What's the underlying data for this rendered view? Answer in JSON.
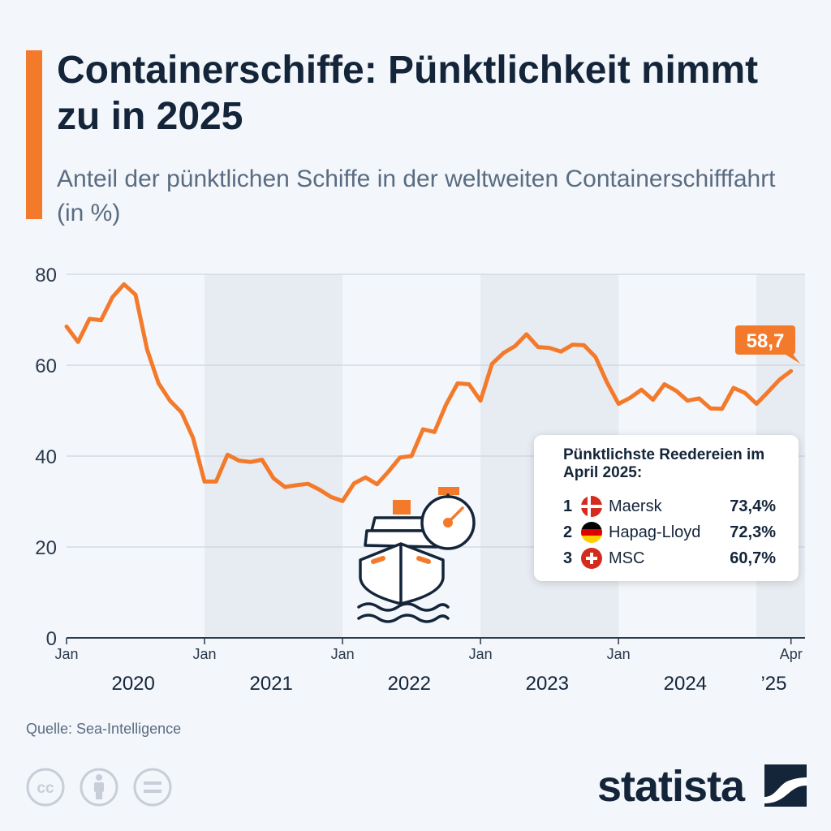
{
  "header": {
    "title": "Containerschiffe: Pünktlichkeit nimmt zu in 2025",
    "subtitle": "Anteil der pünktlichen Schiffe in der weltweiten Containerschifffahrt (in %)"
  },
  "chart_data": {
    "type": "line",
    "title": "Containerschiffe: Pünktlichkeit nimmt zu in 2025",
    "subtitle": "Anteil der pünktlichen Schiffe in der weltweiten Containerschifffahrt (in %)",
    "x": [
      "2020-01",
      "2020-02",
      "2020-03",
      "2020-04",
      "2020-05",
      "2020-06",
      "2020-07",
      "2020-08",
      "2020-09",
      "2020-10",
      "2020-11",
      "2020-12",
      "2021-01",
      "2021-02",
      "2021-03",
      "2021-04",
      "2021-05",
      "2021-06",
      "2021-07",
      "2021-08",
      "2021-09",
      "2021-10",
      "2021-11",
      "2021-12",
      "2022-01",
      "2022-02",
      "2022-03",
      "2022-04",
      "2022-05",
      "2022-06",
      "2022-07",
      "2022-08",
      "2022-09",
      "2022-10",
      "2022-11",
      "2022-12",
      "2023-01",
      "2023-02",
      "2023-03",
      "2023-04",
      "2023-05",
      "2023-06",
      "2023-07",
      "2023-08",
      "2023-09",
      "2023-10",
      "2023-11",
      "2023-12",
      "2024-01",
      "2024-02",
      "2024-03",
      "2024-04",
      "2024-05",
      "2024-06",
      "2024-07",
      "2024-08",
      "2024-09",
      "2024-10",
      "2024-11",
      "2024-12",
      "2025-01",
      "2025-02",
      "2025-03",
      "2025-04"
    ],
    "series": [
      {
        "values": [
          68.5,
          65.1,
          70.2,
          69.9,
          75.0,
          77.8,
          75.5,
          63.5,
          56.0,
          52.2,
          49.6,
          44.0,
          34.4,
          34.4,
          40.3,
          39.0,
          38.7,
          39.2,
          35.1,
          33.2,
          33.6,
          33.9,
          32.6,
          31.0,
          30.1,
          34.0,
          35.3,
          33.8,
          36.6,
          39.7,
          40.0,
          45.9,
          45.3,
          51.3,
          56.0,
          55.8,
          52.2,
          60.3,
          62.7,
          64.2,
          66.8,
          64.0,
          63.8,
          63.0,
          64.5,
          64.4,
          61.8,
          56.2,
          51.5,
          52.8,
          54.6,
          52.4,
          55.8,
          54.4,
          52.2,
          52.7,
          50.5,
          50.4,
          55.0,
          53.9,
          51.5,
          54.1,
          56.8,
          58.7
        ]
      }
    ],
    "ylim": [
      0,
      80
    ],
    "yticks": [
      0,
      20,
      40,
      60,
      80
    ],
    "x_tick_labels": [
      "Jan",
      "Jan",
      "Jan",
      "Jan",
      "Jan",
      "Apr"
    ],
    "year_labels": [
      "2020",
      "2021",
      "2022",
      "2023",
      "2024",
      "’25"
    ],
    "last_value_label": "58,7",
    "grid": true,
    "colors": {
      "line": "#f47a2b",
      "band": "#e7ecf2",
      "grid": "#c5ced9",
      "text": "#2b3a4c"
    }
  },
  "legend": {
    "title": "Pünktlichste Reedereien im April 2025:",
    "items": [
      {
        "rank": "1",
        "flag": "denmark-flag-icon",
        "name": "Maersk",
        "value": "73,4%"
      },
      {
        "rank": "2",
        "flag": "germany-flag-icon",
        "name": "Hapag-Lloyd",
        "value": "72,3%"
      },
      {
        "rank": "3",
        "flag": "switzerland-flag-icon",
        "name": "MSC",
        "value": "60,7%"
      }
    ]
  },
  "footer": {
    "source": "Quelle: Sea-Intelligence",
    "license_icons": [
      "cc-icon",
      "attribution-icon",
      "no-derivatives-icon"
    ],
    "logo_text": "statista"
  },
  "illustration": {
    "icon": "ship-stopwatch-icon"
  }
}
